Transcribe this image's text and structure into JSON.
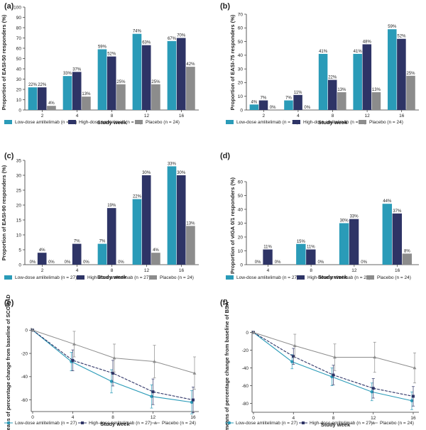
{
  "colors": {
    "low": "#2a9bb8",
    "high": "#2e3466",
    "placebo": "#8c8c8c",
    "axis": "#333333"
  },
  "legend": {
    "items": [
      {
        "key": "low",
        "label": "Low-dose amlitelimab (n = 27)"
      },
      {
        "key": "high",
        "label": "High-dose amlitelimab (n = 27)"
      },
      {
        "key": "placebo",
        "label": "Placebo (n = 24)"
      }
    ]
  },
  "chart_data": [
    {
      "panel": "(a)",
      "type": "bar",
      "ylabel": "Proportion of EASI-50 responders (%)",
      "xlabel": "Study week",
      "ylim": [
        0,
        100
      ],
      "yticks": [
        0,
        10,
        20,
        30,
        40,
        50,
        60,
        70,
        80,
        90,
        100
      ],
      "categories": [
        "2",
        "4",
        "8",
        "12",
        "16"
      ],
      "series": [
        {
          "key": "low",
          "values": [
            22,
            33,
            59,
            74,
            67
          ],
          "labels": [
            "22%",
            "33%",
            "59%",
            "74%",
            "67%"
          ]
        },
        {
          "key": "high",
          "values": [
            22,
            37,
            52,
            63,
            70
          ],
          "labels": [
            "22%",
            "37%",
            "52%",
            "63%",
            "70%"
          ]
        },
        {
          "key": "placebo",
          "values": [
            4,
            13,
            25,
            25,
            42
          ],
          "labels": [
            "4%",
            "13%",
            "25%",
            "25%",
            "42%"
          ]
        }
      ]
    },
    {
      "panel": "(b)",
      "type": "bar",
      "ylabel": "Proportion of EASI-75 responders (%)",
      "xlabel": "Study week",
      "ylim": [
        0,
        70
      ],
      "yticks": [
        0,
        10,
        20,
        30,
        40,
        50,
        60,
        70
      ],
      "categories": [
        "2",
        "4",
        "8",
        "12",
        "16"
      ],
      "series": [
        {
          "key": "low",
          "values": [
            4,
            7,
            41,
            41,
            59
          ],
          "labels": [
            "4%",
            "7%",
            "41%",
            "41%",
            "59%"
          ]
        },
        {
          "key": "high",
          "values": [
            7,
            11,
            22,
            48,
            52
          ],
          "labels": [
            "7%",
            "11%",
            "22%",
            "48%",
            "52%"
          ]
        },
        {
          "key": "placebo",
          "values": [
            0,
            0,
            13,
            13,
            25
          ],
          "labels": [
            "0%",
            "0%",
            "13%",
            "13%",
            "25%"
          ]
        }
      ]
    },
    {
      "panel": "(c)",
      "type": "bar",
      "ylabel": "Proportion of EASI-90 responders (%)",
      "xlabel": "Study week",
      "ylim": [
        0,
        35
      ],
      "yticks": [
        0,
        5,
        10,
        15,
        20,
        25,
        30,
        35
      ],
      "categories": [
        "2",
        "4",
        "8",
        "12",
        "16"
      ],
      "series": [
        {
          "key": "low",
          "values": [
            0,
            0,
            7,
            22,
            33
          ],
          "labels": [
            "0%",
            "0%",
            "7%",
            "22%",
            "33%"
          ]
        },
        {
          "key": "high",
          "values": [
            4,
            7,
            19,
            30,
            30
          ],
          "labels": [
            "4%",
            "7%",
            "19%",
            "30%",
            "30%"
          ]
        },
        {
          "key": "placebo",
          "values": [
            0,
            0,
            0,
            4,
            13
          ],
          "labels": [
            "0%",
            "0%",
            "0%",
            "4%",
            "13%"
          ]
        }
      ]
    },
    {
      "panel": "(d)",
      "type": "bar",
      "ylabel": "Proportion of vIGA 0/1 responders (%)",
      "xlabel": "Study week",
      "ylim": [
        0,
        60
      ],
      "yticks": [
        0,
        10,
        20,
        30,
        40,
        50,
        60
      ],
      "categories": [
        "4",
        "8",
        "12",
        "16"
      ],
      "series": [
        {
          "key": "low",
          "values": [
            0,
            15,
            30,
            44
          ],
          "labels": [
            "0%",
            "15%",
            "30%",
            "44%"
          ]
        },
        {
          "key": "high",
          "values": [
            11,
            11,
            33,
            37
          ],
          "labels": [
            "11%",
            "11%",
            "33%",
            "37%"
          ]
        },
        {
          "key": "placebo",
          "values": [
            0,
            0,
            0,
            8
          ],
          "labels": [
            "0%",
            "0%",
            "0%",
            "8%"
          ]
        }
      ]
    },
    {
      "panel": "(e)",
      "type": "line",
      "ylabel": "LS means of percentage change from baseline of SCORAD",
      "xlabel": "Study week",
      "ylim": [
        -70,
        2
      ],
      "yticks": [
        0,
        -20,
        -40,
        -60
      ],
      "x": [
        0,
        4,
        8,
        12,
        16
      ],
      "series": [
        {
          "key": "low",
          "y": [
            0,
            -27,
            -44,
            -57,
            -62
          ],
          "err": [
            0,
            8,
            10,
            10,
            10
          ]
        },
        {
          "key": "high",
          "y": [
            0,
            -26,
            -37,
            -53,
            -60
          ],
          "err": [
            0,
            9,
            11,
            11,
            11
          ]
        },
        {
          "key": "placebo",
          "y": [
            0,
            -12,
            -24,
            -27,
            -37
          ],
          "err": [
            0,
            11,
            12,
            14,
            14
          ]
        }
      ]
    },
    {
      "panel": "(f)",
      "type": "line",
      "ylabel": "LS means of percentage change from baseline of BSA",
      "xlabel": "Study week",
      "ylim": [
        -90,
        2
      ],
      "yticks": [
        0,
        -20,
        -40,
        -60,
        -80
      ],
      "x": [
        0,
        4,
        8,
        12,
        16
      ],
      "series": [
        {
          "key": "low",
          "y": [
            0,
            -33,
            -50,
            -67,
            -77
          ],
          "err": [
            0,
            8,
            10,
            10,
            10
          ]
        },
        {
          "key": "high",
          "y": [
            0,
            -27,
            -48,
            -63,
            -72
          ],
          "err": [
            0,
            9,
            11,
            11,
            11
          ]
        },
        {
          "key": "placebo",
          "y": [
            0,
            -15,
            -28,
            -28,
            -40
          ],
          "err": [
            0,
            13,
            15,
            17,
            17
          ]
        }
      ]
    }
  ]
}
